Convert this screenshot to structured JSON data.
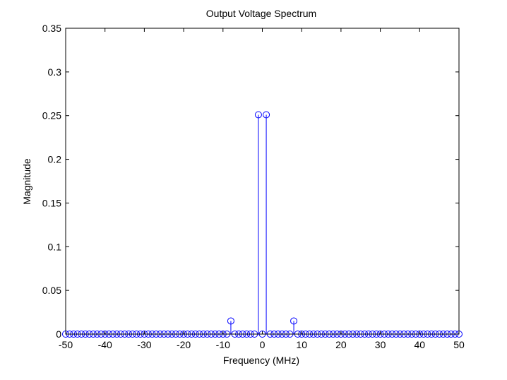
{
  "chart_data": {
    "type": "stem",
    "title": "Output Voltage Spectrum",
    "xlabel": "Frequency (MHz)",
    "ylabel": "Magnitude",
    "xlim": [
      -50,
      50
    ],
    "ylim": [
      0,
      0.35
    ],
    "xticks": [
      "-50",
      "-40",
      "-30",
      "-20",
      "-10",
      "0",
      "10",
      "20",
      "30",
      "40",
      "50"
    ],
    "yticks": [
      "0",
      "0.05",
      "0.1",
      "0.15",
      "0.2",
      "0.25",
      "0.3",
      "0.35"
    ],
    "grid": false,
    "colors": {
      "stem": "#0000ff",
      "axes": "#000000"
    },
    "x_step": 1,
    "series": [
      {
        "x": [
          -50,
          -49,
          -48,
          -47,
          -46,
          -45,
          -44,
          -43,
          -42,
          -41,
          -40,
          -39,
          -38,
          -37,
          -36,
          -35,
          -34,
          -33,
          -32,
          -31,
          -30,
          -29,
          -28,
          -27,
          -26,
          -25,
          -24,
          -23,
          -22,
          -21,
          -20,
          -19,
          -18,
          -17,
          -16,
          -15,
          -14,
          -13,
          -12,
          -11,
          -10,
          -9,
          -8,
          -7,
          -6,
          -5,
          -4,
          -3,
          -2,
          -1,
          0,
          1,
          2,
          3,
          4,
          5,
          6,
          7,
          8,
          9,
          10,
          11,
          12,
          13,
          14,
          15,
          16,
          17,
          18,
          19,
          20,
          21,
          22,
          23,
          24,
          25,
          26,
          27,
          28,
          29,
          30,
          31,
          32,
          33,
          34,
          35,
          36,
          37,
          38,
          39,
          40,
          41,
          42,
          43,
          44,
          45,
          46,
          47,
          48,
          49,
          50
        ],
        "values": [
          0,
          0,
          0,
          0,
          0,
          0,
          0,
          0,
          0,
          0,
          0,
          0,
          0,
          0,
          0,
          0,
          0,
          0,
          0,
          0,
          0,
          0,
          0,
          0,
          0,
          0,
          0,
          0,
          0,
          0,
          0,
          0,
          0,
          0,
          0,
          0,
          0,
          0,
          0,
          0,
          0,
          0,
          0.015,
          0,
          0,
          0,
          0,
          0,
          0,
          0.251,
          0,
          0.251,
          0,
          0,
          0,
          0,
          0,
          0,
          0.015,
          0,
          0,
          0,
          0,
          0,
          0,
          0,
          0,
          0,
          0,
          0,
          0,
          0,
          0,
          0,
          0,
          0,
          0,
          0,
          0,
          0,
          0,
          0,
          0,
          0,
          0,
          0,
          0,
          0,
          0,
          0,
          0,
          0,
          0,
          0,
          0,
          0,
          0,
          0,
          0,
          0,
          0
        ]
      }
    ]
  }
}
